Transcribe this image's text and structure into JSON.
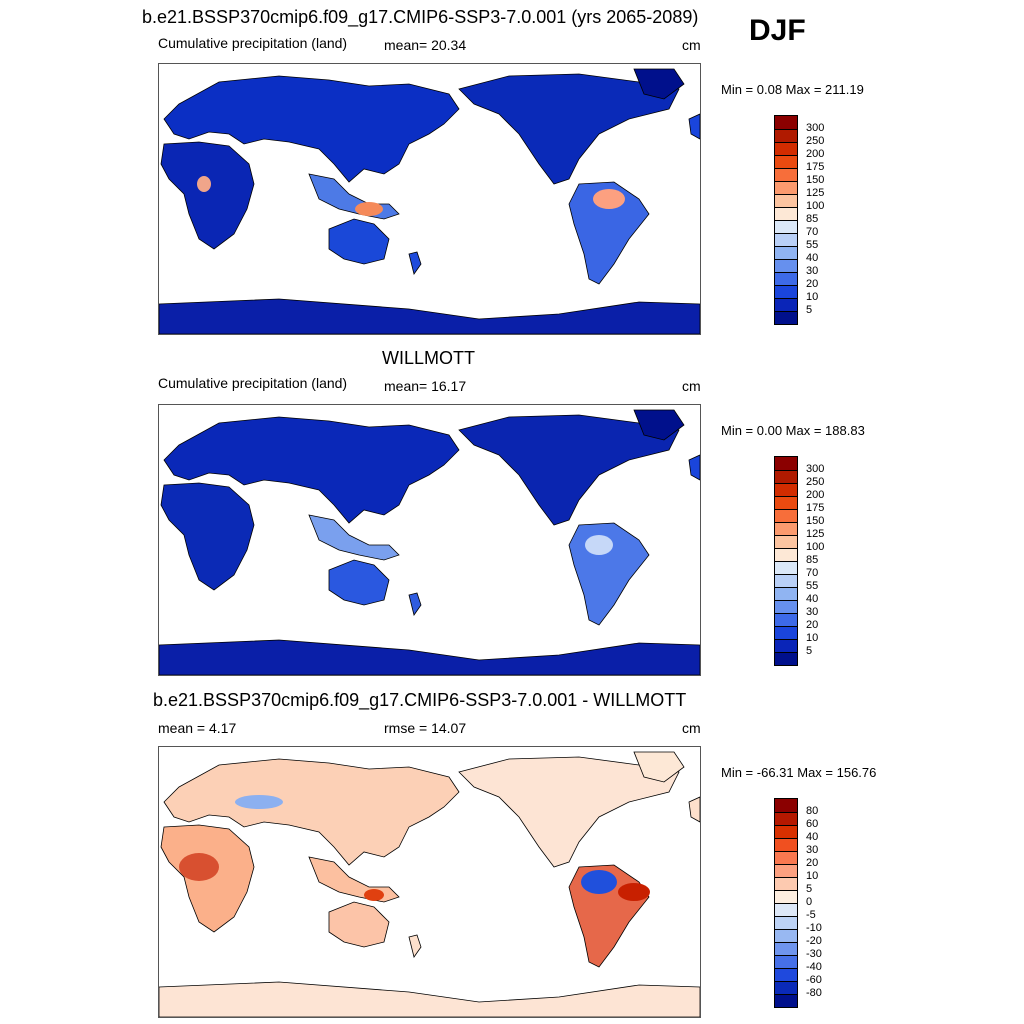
{
  "season": "DJF",
  "panels": [
    {
      "title": "b.e21.BSSP370cmip6.f09_g17.CMIP6-SSP3-7.0.001 (yrs 2065-2089)",
      "left_label": "Cumulative precipitation (land)",
      "center_label": "mean=  20.34",
      "units": "cm",
      "minmax": "Min =   0.08 Max = 211.19",
      "colorbar_labels": [
        "300",
        "250",
        "200",
        "175",
        "150",
        "125",
        "100",
        "85",
        "70",
        "55",
        "40",
        "30",
        "20",
        "10",
        "5"
      ],
      "map_style": "model"
    },
    {
      "title": "WILLMOTT",
      "left_label": "Cumulative precipitation (land)",
      "center_label": "mean=  16.17",
      "units": "cm",
      "minmax": "Min =   0.00 Max = 188.83",
      "colorbar_labels": [
        "300",
        "250",
        "200",
        "175",
        "150",
        "125",
        "100",
        "85",
        "70",
        "55",
        "40",
        "30",
        "20",
        "10",
        "5"
      ],
      "map_style": "obs"
    },
    {
      "title": "b.e21.BSSP370cmip6.f09_g17.CMIP6-SSP3-7.0.001 - WILLMOTT",
      "left_label": "mean =   4.17",
      "center_label": "rmse =  14.07",
      "units": "cm",
      "minmax": "Min = -66.31 Max = 156.76",
      "colorbar_labels": [
        "80",
        "60",
        "40",
        "30",
        "20",
        "10",
        "5",
        "0",
        "-5",
        "-10",
        "-20",
        "-30",
        "-40",
        "-60",
        "-80"
      ],
      "map_style": "diff"
    }
  ],
  "colors": {
    "precip_scale": [
      "#8b0000",
      "#b01a00",
      "#d22c00",
      "#ea4a10",
      "#f76e3a",
      "#fb9a6e",
      "#fcc4a0",
      "#fde8d6",
      "#dbe8f8",
      "#b9d0f7",
      "#90b4f2",
      "#6690ee",
      "#3d6ae8",
      "#1a45dc",
      "#0a25b8",
      "#00108c"
    ],
    "diff_scale": [
      "#8b0000",
      "#b51800",
      "#d83000",
      "#f05020",
      "#f97850",
      "#fca080",
      "#fdcab0",
      "#fdeee0",
      "#dde8f8",
      "#bdd3f6",
      "#98b8f2",
      "#6f95ee",
      "#4670e8",
      "#1f49dd",
      "#0a2ab8",
      "#00108c"
    ]
  }
}
